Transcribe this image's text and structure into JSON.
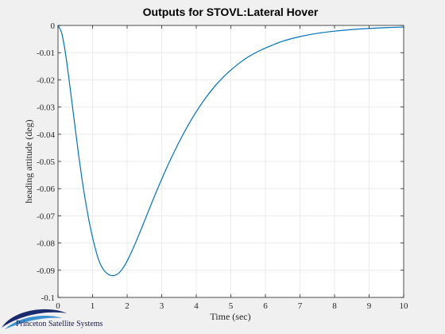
{
  "chart_data": {
    "type": "line",
    "title": "Outputs for STOVL:Lateral Hover",
    "xlabel": "Time (sec)",
    "ylabel": "heading attitude (deg)",
    "xlim": [
      0,
      10
    ],
    "ylim": [
      -0.1,
      0
    ],
    "xticks": [
      0,
      1,
      2,
      3,
      4,
      5,
      6,
      7,
      8,
      9,
      10
    ],
    "yticks": [
      0,
      -0.01,
      -0.02,
      -0.03,
      -0.04,
      -0.05,
      -0.06,
      -0.07,
      -0.08,
      -0.09,
      -0.1
    ],
    "xtick_labels": [
      "0",
      "1",
      "2",
      "3",
      "4",
      "5",
      "6",
      "7",
      "8",
      "9",
      "10"
    ],
    "ytick_labels": [
      "0",
      "-0.01",
      "-0.02",
      "-0.03",
      "-0.04",
      "-0.05",
      "-0.06",
      "-0.07",
      "-0.08",
      "-0.09",
      "-0.1"
    ],
    "grid": true,
    "series": [
      {
        "color": "#0072bd",
        "x": [
          0,
          0.1,
          0.2,
          0.3,
          0.4,
          0.5,
          0.6,
          0.7,
          0.8,
          0.9,
          1.0,
          1.1,
          1.2,
          1.3,
          1.4,
          1.5,
          1.6,
          1.7,
          1.8,
          1.9,
          2.0,
          2.2,
          2.4,
          2.6,
          2.8,
          3.0,
          3.2,
          3.4,
          3.6,
          3.8,
          4.0,
          4.25,
          4.5,
          4.75,
          5.0,
          5.25,
          5.5,
          5.75,
          6.0,
          6.5,
          7.0,
          7.5,
          8.0,
          8.5,
          9.0,
          9.5,
          10.0
        ],
        "y": [
          0,
          -0.0025,
          -0.009,
          -0.018,
          -0.028,
          -0.038,
          -0.048,
          -0.057,
          -0.065,
          -0.072,
          -0.078,
          -0.083,
          -0.087,
          -0.0895,
          -0.091,
          -0.0918,
          -0.092,
          -0.0916,
          -0.0905,
          -0.0888,
          -0.0866,
          -0.0812,
          -0.0751,
          -0.0688,
          -0.0625,
          -0.0565,
          -0.0508,
          -0.0455,
          -0.0405,
          -0.0359,
          -0.0317,
          -0.027,
          -0.0229,
          -0.0194,
          -0.0164,
          -0.0138,
          -0.0116,
          -0.0098,
          -0.0083,
          -0.0058,
          -0.0041,
          -0.0029,
          -0.0021,
          -0.0015,
          -0.0011,
          -0.0008,
          -0.0006
        ]
      }
    ]
  },
  "logo": {
    "text": "Princeton Satellite Systems",
    "colors": {
      "dark": "#1a2a6c",
      "light": "#3a8fd0"
    }
  },
  "colors": {
    "background": "#f0f0f0",
    "plot_background": "#ffffff",
    "grid": "#e6e6e6",
    "axis": "#262626"
  }
}
